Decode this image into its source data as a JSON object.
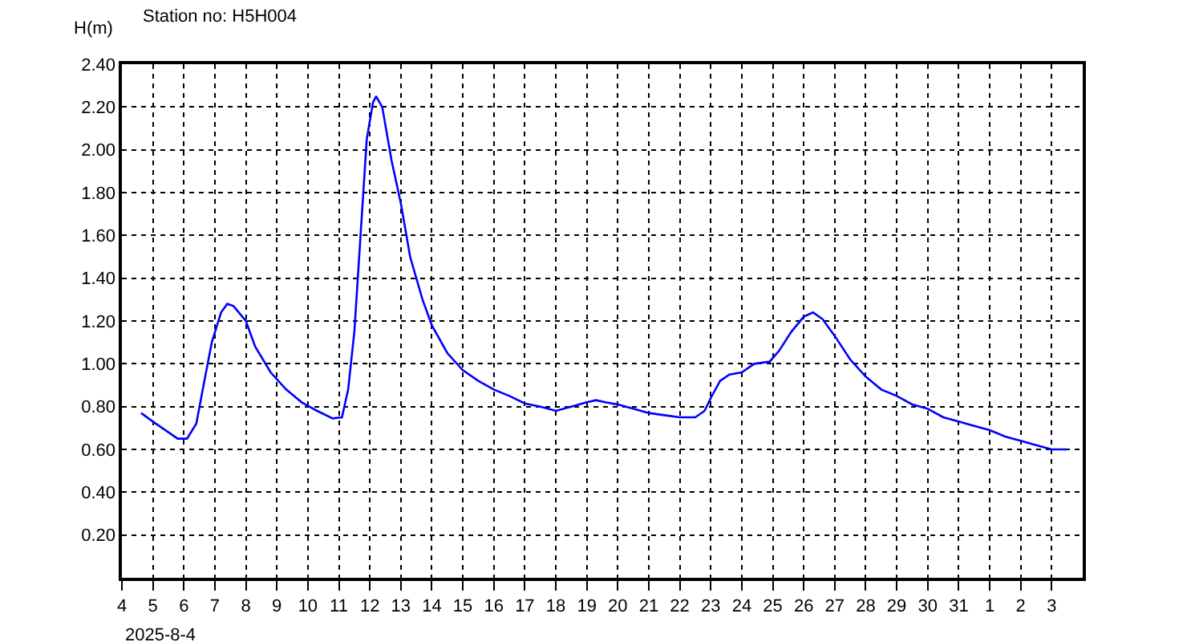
{
  "chart_data": {
    "type": "line",
    "title": "Station no: H5H004",
    "ylabel": "H(m)",
    "annotations": [
      "2025-8-4"
    ],
    "xlim": [
      "2025-08-04",
      "2025-09-04"
    ],
    "xticks": [
      {
        "value": "2025-08-04",
        "label": "4"
      },
      {
        "value": "2025-08-05",
        "label": "5"
      },
      {
        "value": "2025-08-06",
        "label": "6"
      },
      {
        "value": "2025-08-07",
        "label": "7"
      },
      {
        "value": "2025-08-08",
        "label": "8"
      },
      {
        "value": "2025-08-09",
        "label": "9"
      },
      {
        "value": "2025-08-10",
        "label": "10"
      },
      {
        "value": "2025-08-11",
        "label": "11"
      },
      {
        "value": "2025-08-12",
        "label": "12"
      },
      {
        "value": "2025-08-13",
        "label": "13"
      },
      {
        "value": "2025-08-14",
        "label": "14"
      },
      {
        "value": "2025-08-15",
        "label": "15"
      },
      {
        "value": "2025-08-16",
        "label": "16"
      },
      {
        "value": "2025-08-17",
        "label": "17"
      },
      {
        "value": "2025-08-18",
        "label": "18"
      },
      {
        "value": "2025-08-19",
        "label": "19"
      },
      {
        "value": "2025-08-20",
        "label": "20"
      },
      {
        "value": "2025-08-21",
        "label": "21"
      },
      {
        "value": "2025-08-22",
        "label": "22"
      },
      {
        "value": "2025-08-23",
        "label": "23"
      },
      {
        "value": "2025-08-24",
        "label": "24"
      },
      {
        "value": "2025-08-25",
        "label": "25"
      },
      {
        "value": "2025-08-26",
        "label": "26"
      },
      {
        "value": "2025-08-27",
        "label": "27"
      },
      {
        "value": "2025-08-28",
        "label": "28"
      },
      {
        "value": "2025-08-29",
        "label": "29"
      },
      {
        "value": "2025-08-30",
        "label": "30"
      },
      {
        "value": "2025-08-31",
        "label": "31"
      },
      {
        "value": "2025-09-01",
        "label": "1"
      },
      {
        "value": "2025-09-02",
        "label": "2"
      },
      {
        "value": "2025-09-03",
        "label": "3"
      }
    ],
    "ylim": [
      0,
      2.4
    ],
    "yticks": [
      {
        "value": 0.2,
        "label": "0.20"
      },
      {
        "value": 0.4,
        "label": "0.40"
      },
      {
        "value": 0.6,
        "label": "0.60"
      },
      {
        "value": 0.8,
        "label": "0.80"
      },
      {
        "value": 1.0,
        "label": "1.00"
      },
      {
        "value": 1.2,
        "label": "1.20"
      },
      {
        "value": 1.4,
        "label": "1.40"
      },
      {
        "value": 1.6,
        "label": "1.60"
      },
      {
        "value": 1.8,
        "label": "1.80"
      },
      {
        "value": 2.0,
        "label": "2.00"
      },
      {
        "value": 2.2,
        "label": "2.20"
      },
      {
        "value": 2.4,
        "label": "2.40"
      }
    ],
    "grid": true,
    "marker": "none",
    "line_style": "solid",
    "series": [
      {
        "color": "#0000ff",
        "x": [
          "2025-08-04T14:53",
          "2025-08-05T00:00",
          "2025-08-05T12:00",
          "2025-08-05T19:12",
          "2025-08-06T02:24",
          "2025-08-06T09:36",
          "2025-08-06T16:48",
          "2025-08-06T21:36",
          "2025-08-07T04:48",
          "2025-08-07T09:36",
          "2025-08-07T14:24",
          "2025-08-08T00:00",
          "2025-08-08T07:12",
          "2025-08-08T19:12",
          "2025-08-09T07:12",
          "2025-08-09T19:12",
          "2025-08-10T07:12",
          "2025-08-10T19:12",
          "2025-08-11T02:24",
          "2025-08-11T07:12",
          "2025-08-11T12:00",
          "2025-08-11T16:48",
          "2025-08-11T21:36",
          "2025-08-12T02:24",
          "2025-08-12T04:48",
          "2025-08-12T09:36",
          "2025-08-12T16:48",
          "2025-08-13T00:00",
          "2025-08-13T07:12",
          "2025-08-13T16:48",
          "2025-08-14T00:00",
          "2025-08-14T12:00",
          "2025-08-15T00:00",
          "2025-08-15T12:00",
          "2025-08-16T00:00",
          "2025-08-16T12:00",
          "2025-08-17T00:00",
          "2025-08-17T12:00",
          "2025-08-18T00:00",
          "2025-08-18T12:00",
          "2025-08-19T00:00",
          "2025-08-19T07:12",
          "2025-08-19T14:24",
          "2025-08-20T00:00",
          "2025-08-20T12:00",
          "2025-08-21T00:00",
          "2025-08-21T12:00",
          "2025-08-22T00:00",
          "2025-08-22T12:00",
          "2025-08-22T19:12",
          "2025-08-23T00:00",
          "2025-08-23T07:12",
          "2025-08-23T14:24",
          "2025-08-24T00:00",
          "2025-08-24T09:36",
          "2025-08-24T21:36",
          "2025-08-25T04:48",
          "2025-08-25T14:24",
          "2025-08-26T00:00",
          "2025-08-26T07:12",
          "2025-08-26T14:24",
          "2025-08-27T00:00",
          "2025-08-27T12:00",
          "2025-08-28T00:00",
          "2025-08-28T12:00",
          "2025-08-29T00:00",
          "2025-08-29T12:00",
          "2025-08-30T00:00",
          "2025-08-30T12:00",
          "2025-08-31T00:00",
          "2025-08-31T12:00",
          "2025-09-01T00:00",
          "2025-09-01T12:00",
          "2025-09-02T00:00",
          "2025-09-02T12:00",
          "2025-09-03T00:00",
          "2025-09-03T12:00"
        ],
        "values": [
          0.77,
          0.73,
          0.68,
          0.65,
          0.65,
          0.72,
          0.95,
          1.1,
          1.24,
          1.28,
          1.27,
          1.2,
          1.08,
          0.96,
          0.88,
          0.82,
          0.78,
          0.745,
          0.75,
          0.88,
          1.15,
          1.6,
          2.05,
          2.22,
          2.25,
          2.2,
          1.95,
          1.75,
          1.5,
          1.3,
          1.18,
          1.05,
          0.97,
          0.92,
          0.88,
          0.85,
          0.815,
          0.8,
          0.78,
          0.8,
          0.82,
          0.83,
          0.82,
          0.81,
          0.79,
          0.77,
          0.76,
          0.75,
          0.75,
          0.78,
          0.84,
          0.92,
          0.95,
          0.96,
          1.0,
          1.01,
          1.06,
          1.15,
          1.22,
          1.24,
          1.21,
          1.13,
          1.02,
          0.94,
          0.88,
          0.85,
          0.81,
          0.79,
          0.75,
          0.73,
          0.71,
          0.69,
          0.66,
          0.64,
          0.62,
          0.6,
          0.6
        ]
      }
    ]
  }
}
